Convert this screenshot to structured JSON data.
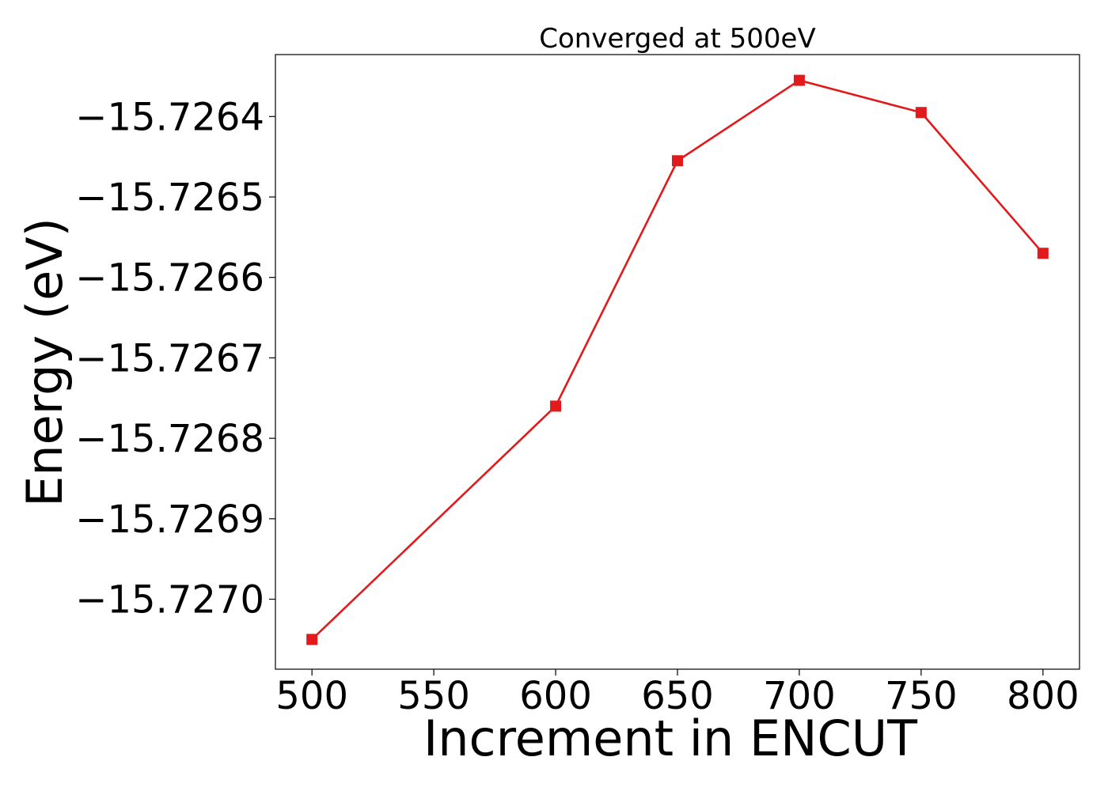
{
  "chart_data": {
    "type": "line",
    "title": "Converged at 500eV",
    "xlabel": "Increment in ENCUT",
    "ylabel": "Energy (eV)",
    "x": [
      500,
      600,
      650,
      700,
      750,
      800
    ],
    "series": [
      {
        "values": [
          -15.72705,
          -15.72676,
          -15.726455,
          -15.726355,
          -15.726395,
          -15.72657
        ],
        "color": "#e31a1c",
        "marker": "square"
      }
    ],
    "xlim": [
      485,
      815
    ],
    "ylim": [
      -15.727087,
      -15.726323
    ],
    "xticks": [
      500,
      550,
      600,
      650,
      700,
      750,
      800
    ],
    "xtick_labels": [
      "500",
      "550",
      "600",
      "650",
      "700",
      "750",
      "800"
    ],
    "yticks": [
      -15.727,
      -15.7269,
      -15.7268,
      -15.7267,
      -15.7266,
      -15.7265,
      -15.7264
    ],
    "ytick_labels": [
      "−15.7270",
      "−15.7269",
      "−15.7268",
      "−15.7267",
      "−15.7266",
      "−15.7265",
      "−15.7264"
    ],
    "grid": false,
    "legend": "none"
  }
}
